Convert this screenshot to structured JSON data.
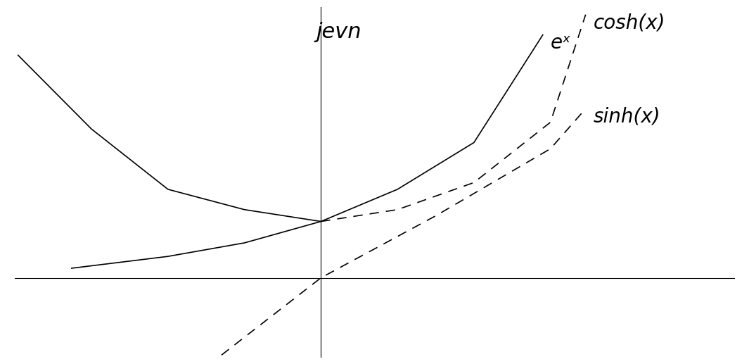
{
  "chart_data": {
    "type": "line",
    "annotations": [
      "jevn"
    ],
    "xlim": [
      -2,
      2.7
    ],
    "ylim": [
      -1.4,
      4.8
    ],
    "tick_labels": false,
    "grid": false,
    "series": [
      {
        "name": "eˣ",
        "color": "#000000",
        "line_style": "solid",
        "x": [
          -1.63,
          -1.0,
          -0.5,
          0.0,
          0.5,
          1.0,
          1.45
        ],
        "values": [
          0.17,
          0.38,
          0.62,
          1.0,
          1.57,
          2.4,
          4.31
        ]
      },
      {
        "color": "#000000",
        "line_style": "solid",
        "x": [
          -1.98,
          -1.5,
          -1.0,
          -0.5,
          0.0
        ],
        "values": [
          3.95,
          2.64,
          1.57,
          1.21,
          1.0
        ]
      },
      {
        "name": "cosh(x)",
        "color": "#000000",
        "line_style": "dashed",
        "x": [
          0.0,
          0.5,
          1.0,
          1.5,
          1.73
        ],
        "values": [
          1.0,
          1.21,
          1.69,
          2.76,
          4.67
        ]
      },
      {
        "name": "sinh(x)",
        "color": "#000000",
        "line_style": "dashed",
        "x": [
          -0.65,
          0.0,
          0.75,
          1.5,
          1.73
        ],
        "values": [
          -1.37,
          0.0,
          1.1,
          2.29,
          3.0
        ]
      }
    ]
  }
}
